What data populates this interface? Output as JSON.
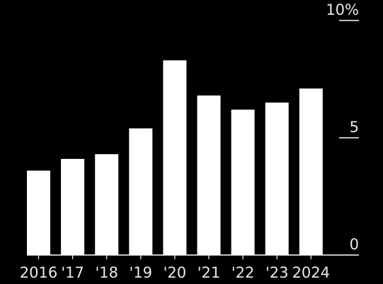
{
  "chart_data": {
    "type": "bar",
    "categories": [
      "2016",
      "'17",
      "'18",
      "'19",
      "'20",
      "'21",
      "'22",
      "'23",
      "2024"
    ],
    "values": [
      3.6,
      4.1,
      4.3,
      5.4,
      8.3,
      6.8,
      6.2,
      6.5,
      7.1
    ],
    "ylim": [
      0,
      10
    ],
    "yticks": [
      {
        "value": 10,
        "label": "10%"
      },
      {
        "value": 5,
        "label": "5"
      },
      {
        "value": 0,
        "label": "0"
      }
    ],
    "grid": false,
    "colors": {
      "background": "#000000",
      "bar": "#ffffff",
      "axis": "#ffffff",
      "text": "#e8e8e8"
    }
  }
}
